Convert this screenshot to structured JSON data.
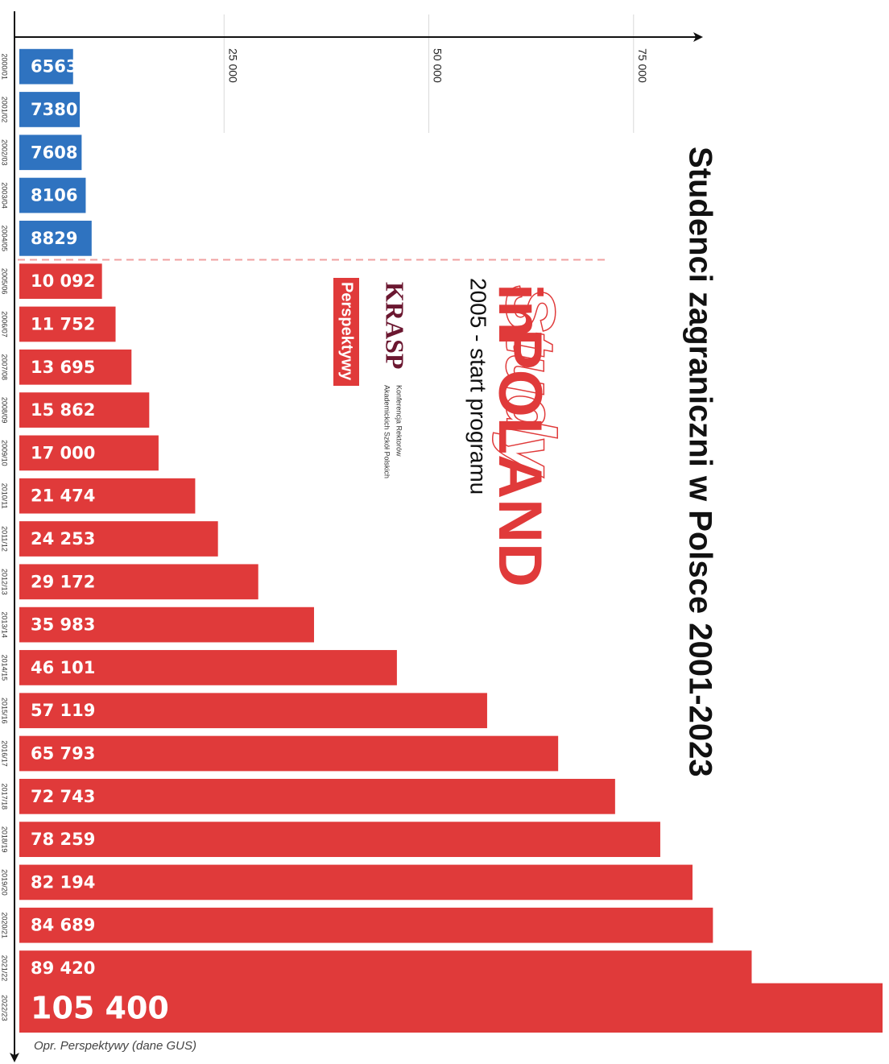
{
  "chart_data": {
    "type": "bar",
    "orientation": "horizontal",
    "title": "Studenci zagraniczni w Polsce 2001-2023",
    "xlim": [
      0,
      105400
    ],
    "x_ticks": [
      25000,
      50000,
      75000
    ],
    "x_tick_labels": [
      "25 000",
      "50 000",
      "75 000"
    ],
    "grid": true,
    "categories": [
      "2000/01",
      "2001/02",
      "2002/03",
      "2003/04",
      "2004/05",
      "2005/06",
      "2006/07",
      "2007/08",
      "2008/09",
      "2009/10",
      "2010/11",
      "2011/12",
      "2012/13",
      "2013/14",
      "2014/15",
      "2015/16",
      "2016/17",
      "2017/18",
      "2018/19",
      "2019/20",
      "2020/21",
      "2021/22",
      "2022/23"
    ],
    "values": [
      6563,
      7380,
      7608,
      8106,
      8829,
      10092,
      11752,
      13695,
      15862,
      17000,
      21474,
      24253,
      29172,
      35983,
      46101,
      57119,
      65793,
      72743,
      78259,
      82194,
      84689,
      89420,
      105400
    ],
    "value_labels": [
      "6563",
      "7380",
      "7608",
      "8106",
      "8829",
      "10 092",
      "11 752",
      "13 695",
      "15 862",
      "17 000",
      "21 474",
      "24 253",
      "29 172",
      "35 983",
      "46 101",
      "57 119",
      "65 793",
      "72 743",
      "78 259",
      "82 194",
      "84 689",
      "89 420",
      "105 400"
    ],
    "colors": {
      "before_program": "#2f73c0",
      "after_program": "#e03a3a",
      "divider": "#f0a0a0"
    },
    "program_start_index": 5,
    "annotations": {
      "logo_study": "Study",
      "logo_in": "in",
      "logo_poland": "POLAND",
      "program_start": "2005 - start programu",
      "krasp": "KRASP",
      "krasp_sub_1": "Konferencja Rektorów",
      "krasp_sub_2": "Akademickich Szkół Polskich",
      "perspektywy": "Perspektywy"
    },
    "source": "Opr. Perspektywy (dane GUS)"
  }
}
